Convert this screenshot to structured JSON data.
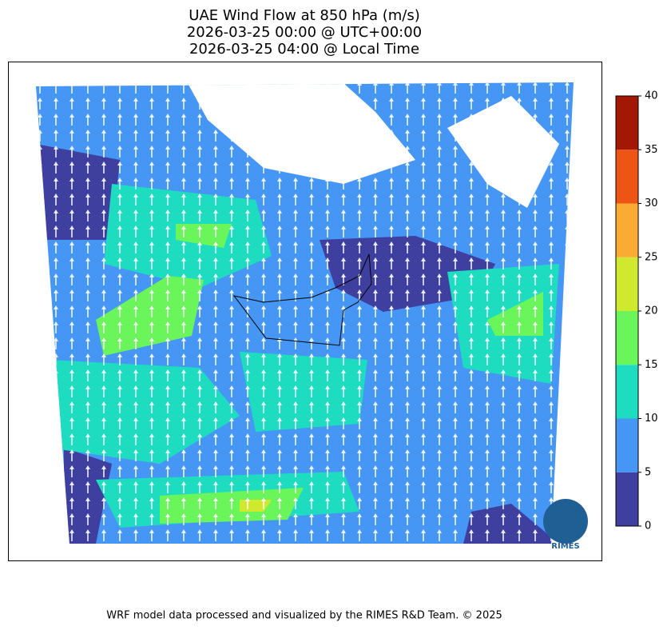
{
  "header": {
    "title_lines": [
      "UAE Wind Flow at 850 hPa (m/s)",
      "2026-03-25 00:00 @ UTC+00:00",
      "2026-03-25 04:00 @ Local Time"
    ]
  },
  "colorbar": {
    "range": [
      0,
      40
    ],
    "ticks": [
      0,
      5,
      10,
      15,
      20,
      25,
      30,
      35,
      40
    ],
    "colors": [
      "#3f3f9f",
      "#4596f5",
      "#1edcc0",
      "#6af55a",
      "#d0e92f",
      "#fbab33",
      "#ee5514",
      "#a31705"
    ]
  },
  "logo": {
    "text": "RIMES"
  },
  "footer": {
    "text": "WRF model data processed and visualized by the RIMES R&D Team. © 2025"
  }
}
